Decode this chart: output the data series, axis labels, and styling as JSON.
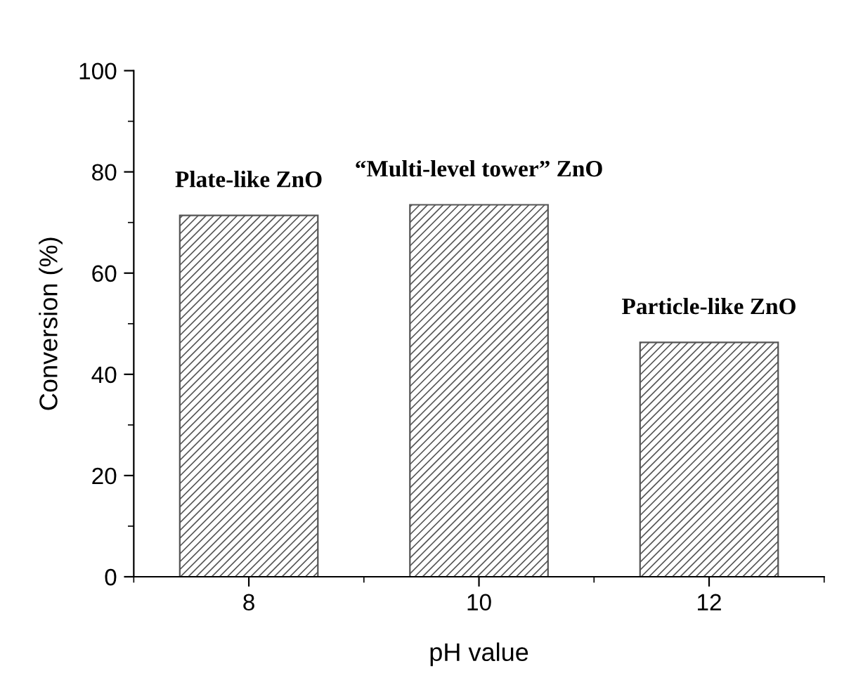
{
  "chart_data": {
    "type": "bar",
    "xlabel": "pH value",
    "ylabel": "Conversion (%)",
    "x": [
      8,
      10,
      12
    ],
    "values": [
      71.4,
      73.5,
      46.3
    ],
    "color": "#555555",
    "xlim": [
      7,
      13
    ],
    "xticks": [
      8,
      10,
      12
    ],
    "ylim": [
      0,
      100
    ],
    "yticks": [
      0,
      20,
      40,
      60,
      80,
      100
    ],
    "grid": false,
    "legend": false,
    "annotations": [
      {
        "text": "Plate-like ZnO",
        "x": 8,
        "y": 71.4
      },
      {
        "text": "“Multi-level tower” ZnO",
        "x": 10,
        "y": 73.5
      },
      {
        "text": "Particle-like ZnO",
        "x": 12,
        "y": 46.3
      }
    ]
  }
}
